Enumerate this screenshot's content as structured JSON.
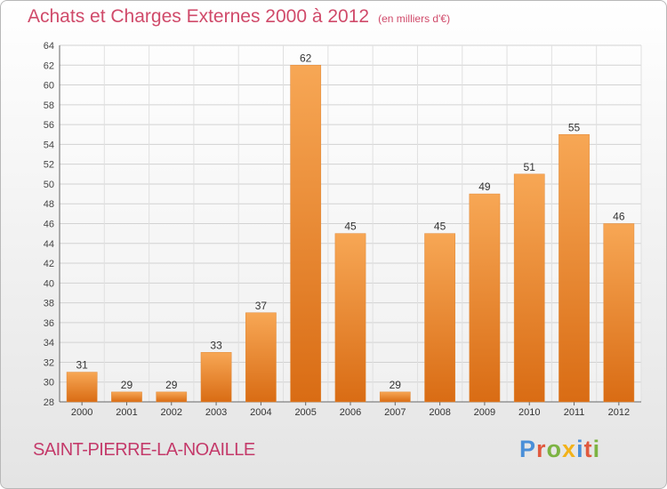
{
  "header": {
    "title": "Achats et Charges Externes 2000 à 2012",
    "unit": "(en milliers d'€)"
  },
  "footer": {
    "commune": "SAINT-PIERRE-LA-NOAILLE",
    "logo_letters": [
      "P",
      "r",
      "o",
      "x",
      "i",
      "t",
      "i"
    ],
    "logo_colors": [
      "#4a8fd8",
      "#e0593e",
      "#7cb342",
      "#f2b21a",
      "#4a8fd8",
      "#e0593e",
      "#7cb342"
    ]
  },
  "colors": {
    "bar_top": "#f7a755",
    "bar_bottom": "#d96c14",
    "title": "#d04a6a"
  },
  "chart_data": {
    "type": "bar",
    "categories": [
      "2000",
      "2001",
      "2002",
      "2003",
      "2004",
      "2005",
      "2006",
      "2007",
      "2008",
      "2009",
      "2010",
      "2011",
      "2012"
    ],
    "values": [
      31,
      29,
      29,
      33,
      37,
      62,
      45,
      29,
      45,
      49,
      51,
      55,
      46
    ],
    "ylim": [
      28,
      64
    ],
    "yticks": [
      28,
      30,
      32,
      34,
      36,
      38,
      40,
      42,
      44,
      46,
      48,
      50,
      52,
      54,
      56,
      58,
      60,
      62,
      64
    ],
    "grid": true,
    "data_labels": true
  }
}
